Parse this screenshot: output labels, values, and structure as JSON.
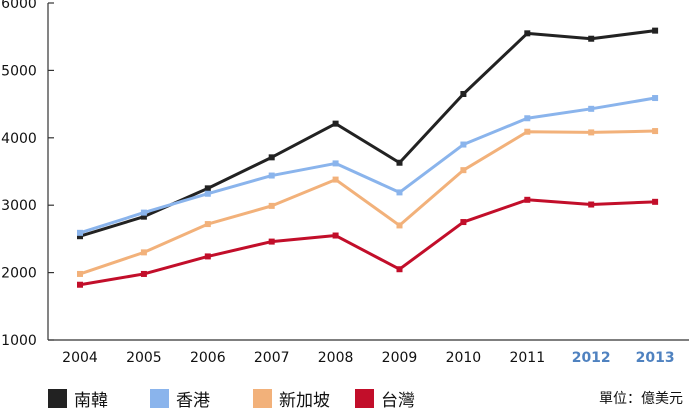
{
  "chart_data": {
    "type": "line",
    "title": "",
    "xlabel": "",
    "ylabel": "",
    "categories": [
      "2004",
      "2005",
      "2006",
      "2007",
      "2008",
      "2009",
      "2010",
      "2011",
      "2012",
      "2013"
    ],
    "highlight_categories": [
      "2012",
      "2013"
    ],
    "highlight_color": "#4f82c0",
    "yticks": [
      "1000",
      "2000",
      "3000",
      "4000",
      "5000",
      "6000"
    ],
    "ylim": [
      1000,
      6000
    ],
    "grid": false,
    "legend_position": "bottom",
    "series": [
      {
        "name": "南韓",
        "color": "#222222",
        "values": [
          2540,
          2830,
          3250,
          3710,
          4210,
          3630,
          4650,
          5550,
          5470,
          5590
        ]
      },
      {
        "name": "香港",
        "color": "#8ab4ec",
        "values": [
          2590,
          2890,
          3170,
          3440,
          3620,
          3190,
          3900,
          4290,
          4430,
          4590
        ]
      },
      {
        "name": "新加坡",
        "color": "#f2b17a",
        "values": [
          1980,
          2300,
          2720,
          2990,
          3380,
          2700,
          3520,
          4090,
          4080,
          4100
        ]
      },
      {
        "name": "台灣",
        "color": "#c20e2a",
        "values": [
          1820,
          1980,
          2240,
          2460,
          2550,
          2050,
          2750,
          3080,
          3010,
          3050
        ]
      }
    ],
    "unit_note": "單位：億美元"
  }
}
